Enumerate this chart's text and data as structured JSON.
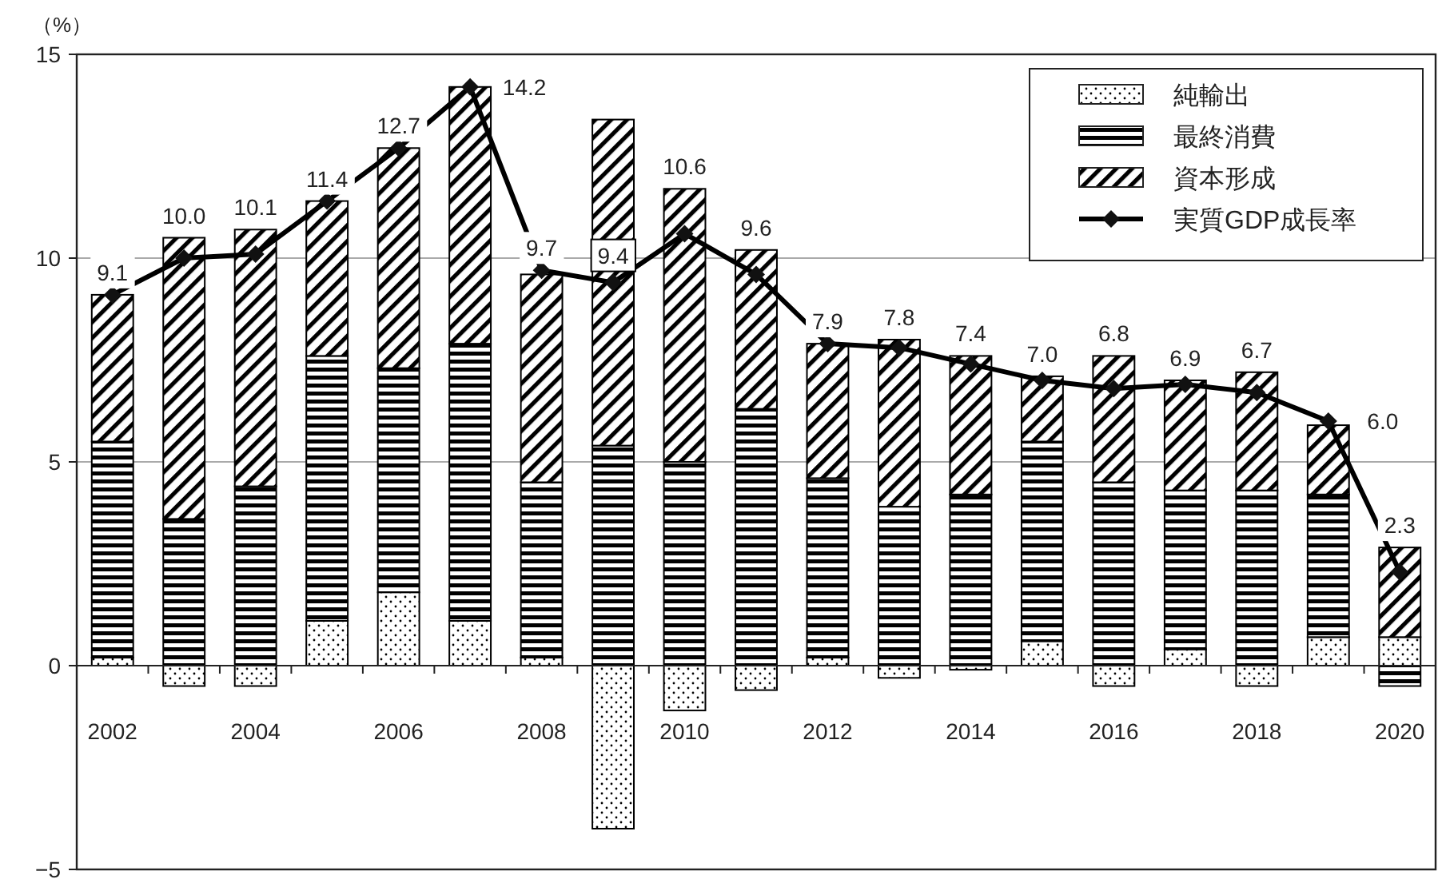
{
  "chart_data": {
    "type": "bar",
    "stacked": true,
    "ylabel": "（%）",
    "categories": [
      "2002",
      null,
      "2004",
      null,
      "2006",
      null,
      "2008",
      null,
      "2010",
      null,
      "2012",
      null,
      "2014",
      null,
      "2016",
      null,
      "2018",
      null,
      "2020"
    ],
    "series": [
      {
        "name": "純輸出",
        "color": "#000000",
        "values": [
          0.2,
          -0.5,
          -0.5,
          1.1,
          1.8,
          1.1,
          0.2,
          -4.0,
          -1.1,
          -0.6,
          0.2,
          -0.3,
          -0.1,
          0.6,
          -0.5,
          0.4,
          -0.5,
          0.7,
          0.7
        ]
      },
      {
        "name": "最終消費",
        "color": "#000000",
        "values": [
          5.3,
          3.6,
          4.4,
          6.5,
          5.5,
          6.8,
          4.3,
          5.4,
          5.0,
          6.3,
          4.4,
          3.9,
          4.2,
          4.9,
          4.5,
          3.9,
          4.3,
          3.5,
          -0.5
        ]
      },
      {
        "name": "資本形成",
        "color": "#000000",
        "values": [
          3.6,
          6.9,
          6.3,
          3.8,
          5.4,
          6.3,
          5.1,
          8.0,
          6.7,
          3.9,
          3.3,
          4.1,
          3.4,
          1.6,
          3.1,
          2.7,
          2.9,
          1.7,
          2.2
        ]
      },
      {
        "name": "実質GDP成長率",
        "type": "line",
        "color": "#000000",
        "marker": "diamond",
        "values": [
          9.1,
          10.0,
          10.1,
          11.4,
          12.7,
          14.2,
          9.7,
          9.4,
          10.6,
          9.6,
          7.9,
          7.8,
          7.4,
          7.0,
          6.8,
          6.9,
          6.7,
          6.0,
          2.3
        ],
        "value_labels": [
          "9.1",
          "10.0",
          "10.1",
          "11.4",
          "12.7",
          "14.2",
          "9.7",
          "9.4",
          "10.6",
          "9.6",
          "7.9",
          "7.8",
          "7.4",
          "7.0",
          "6.8",
          "6.9",
          "6.7",
          "6.0",
          "2.3"
        ]
      }
    ],
    "ylim": [
      -5,
      15
    ],
    "yticks": [
      -5,
      0,
      5,
      10,
      15
    ],
    "grid": "y",
    "legend": "top right"
  }
}
